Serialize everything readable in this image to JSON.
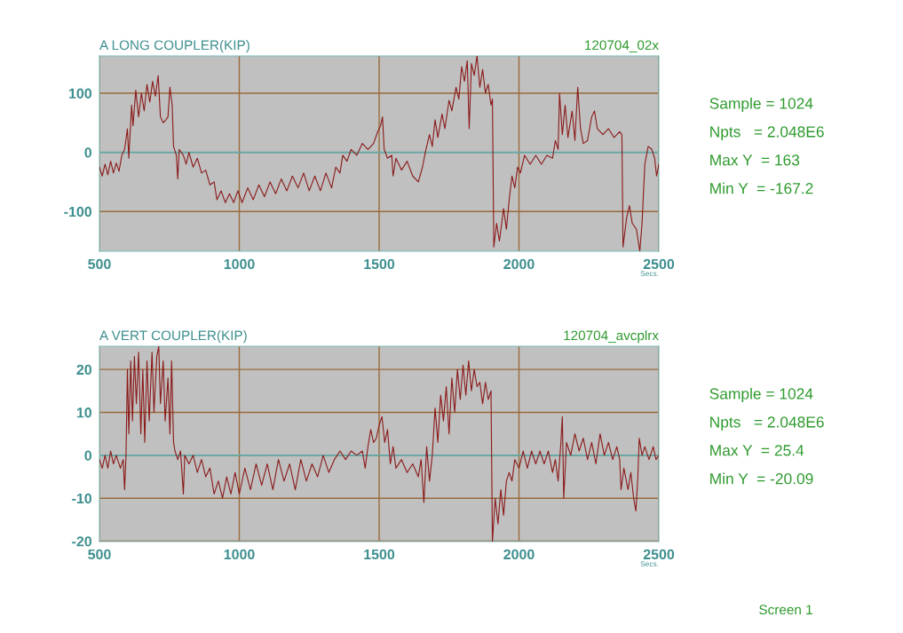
{
  "chart_data": [
    {
      "type": "line",
      "title": "A LONG COUPLER(KIP)",
      "subtitle": "120704_02x",
      "xlabel": "Secs.",
      "xlim": [
        500,
        2500
      ],
      "xticks": [
        500,
        1000,
        1500,
        2000,
        2500
      ],
      "ylim": [
        -167.2,
        163
      ],
      "yticks": [
        -100,
        0,
        100
      ],
      "grid": true,
      "ref_lines": [
        {
          "axis": "y",
          "value": 0,
          "color": "#62aaaa"
        }
      ],
      "annotations": [
        "Sample = 1024",
        "Npts   = 2.048E6",
        "Max Y  = 163",
        "Min Y  = -167.2"
      ],
      "series": [
        {
          "color": "#8b1a1a",
          "x": [
            500,
            510,
            520,
            530,
            540,
            550,
            560,
            570,
            580,
            590,
            600,
            605,
            615,
            620,
            630,
            640,
            650,
            660,
            670,
            680,
            690,
            700,
            710,
            718,
            728,
            738,
            745,
            752,
            760,
            765,
            775,
            780,
            785,
            800,
            810,
            820,
            835,
            850,
            865,
            880,
            895,
            910,
            920,
            935,
            950,
            965,
            980,
            995,
            1010,
            1030,
            1050,
            1070,
            1090,
            1110,
            1130,
            1150,
            1170,
            1190,
            1210,
            1230,
            1250,
            1270,
            1290,
            1310,
            1330,
            1345,
            1360,
            1370,
            1385,
            1400,
            1420,
            1440,
            1460,
            1480,
            1495,
            1505,
            1512,
            1518,
            1530,
            1545,
            1550,
            1560,
            1580,
            1600,
            1620,
            1640,
            1655,
            1665,
            1680,
            1690,
            1700,
            1710,
            1725,
            1735,
            1750,
            1760,
            1775,
            1785,
            1795,
            1805,
            1815,
            1822,
            1830,
            1840,
            1850,
            1860,
            1870,
            1880,
            1890,
            1900,
            1905,
            1910,
            1920,
            1930,
            1945,
            1955,
            1965,
            1975,
            1985,
            1995,
            2005,
            2020,
            2040,
            2060,
            2080,
            2100,
            2120,
            2130,
            2140,
            2145,
            2155,
            2165,
            2175,
            2190,
            2200,
            2210,
            2220,
            2230,
            2245,
            2260,
            2270,
            2280,
            2300,
            2320,
            2340,
            2360,
            2368,
            2372,
            2385,
            2395,
            2405,
            2420,
            2432,
            2440,
            2450,
            2462,
            2475,
            2485,
            2492,
            2500
          ],
          "values": [
            -25,
            -40,
            -20,
            -38,
            -15,
            -35,
            -18,
            -32,
            -5,
            5,
            40,
            -10,
            80,
            45,
            105,
            60,
            100,
            70,
            115,
            85,
            120,
            95,
            130,
            60,
            50,
            55,
            60,
            110,
            80,
            10,
            -5,
            -45,
            5,
            -5,
            -20,
            0,
            -25,
            -10,
            -35,
            -30,
            -55,
            -50,
            -80,
            -65,
            -85,
            -70,
            -85,
            -65,
            -85,
            -60,
            -80,
            -55,
            -75,
            -50,
            -70,
            -45,
            -65,
            -40,
            -60,
            -35,
            -65,
            -40,
            -65,
            -35,
            -60,
            -25,
            -35,
            -5,
            -15,
            5,
            -5,
            15,
            5,
            15,
            35,
            45,
            60,
            5,
            -10,
            -5,
            -40,
            -10,
            -30,
            -15,
            -40,
            -50,
            -25,
            0,
            30,
            10,
            55,
            25,
            65,
            40,
            88,
            70,
            110,
            90,
            145,
            120,
            155,
            40,
            150,
            130,
            163,
            110,
            140,
            100,
            115,
            80,
            90,
            -160,
            -120,
            -150,
            -95,
            -130,
            -80,
            -40,
            -60,
            -25,
            -35,
            -5,
            -20,
            -5,
            -20,
            -5,
            -10,
            20,
            5,
            100,
            30,
            80,
            25,
            70,
            20,
            110,
            40,
            15,
            20,
            60,
            70,
            40,
            30,
            40,
            25,
            35,
            30,
            -160,
            -110,
            -90,
            -120,
            -130,
            -167.2,
            -120,
            -20,
            10,
            5,
            -10,
            -40,
            -20
          ]
        }
      ]
    },
    {
      "type": "line",
      "title": "A VERT COUPLER(KIP)",
      "subtitle": "120704_avcplrx",
      "xlabel": "Secs.",
      "xlim": [
        500,
        2500
      ],
      "xticks": [
        500,
        1000,
        1500,
        2000,
        2500
      ],
      "ylim": [
        -20.09,
        25.4
      ],
      "yticks": [
        -20,
        -10,
        0,
        10,
        20
      ],
      "grid": true,
      "ref_lines": [
        {
          "axis": "y",
          "value": 0,
          "color": "#62aaaa"
        }
      ],
      "annotations": [
        "Sample = 1024",
        "Npts   = 2.048E6",
        "Max Y  = 25.4",
        "Min Y  = -20.09",
        "Screen 1"
      ],
      "series": [
        {
          "color": "#8b1a1a",
          "x": [
            500,
            510,
            520,
            530,
            540,
            550,
            560,
            575,
            585,
            590,
            595,
            600,
            605,
            612,
            618,
            625,
            632,
            640,
            648,
            655,
            662,
            670,
            678,
            688,
            695,
            705,
            712,
            718,
            728,
            735,
            745,
            752,
            758,
            765,
            770,
            780,
            790,
            800,
            805,
            820,
            835,
            850,
            865,
            880,
            895,
            910,
            925,
            940,
            955,
            970,
            985,
            1000,
            1020,
            1040,
            1060,
            1080,
            1100,
            1120,
            1140,
            1160,
            1180,
            1200,
            1220,
            1240,
            1260,
            1280,
            1300,
            1320,
            1340,
            1360,
            1380,
            1400,
            1420,
            1440,
            1450,
            1460,
            1470,
            1480,
            1490,
            1500,
            1510,
            1520,
            1530,
            1540,
            1550,
            1560,
            1580,
            1600,
            1620,
            1640,
            1650,
            1660,
            1670,
            1680,
            1690,
            1700,
            1710,
            1720,
            1730,
            1740,
            1750,
            1760,
            1770,
            1780,
            1790,
            1800,
            1810,
            1820,
            1830,
            1840,
            1850,
            1860,
            1870,
            1880,
            1890,
            1900,
            1905,
            1915,
            1925,
            1935,
            1945,
            1955,
            1965,
            1975,
            1985,
            2000,
            2015,
            2030,
            2045,
            2060,
            2075,
            2090,
            2105,
            2120,
            2130,
            2140,
            2150,
            2155,
            2160,
            2170,
            2185,
            2200,
            2215,
            2230,
            2245,
            2260,
            2275,
            2290,
            2305,
            2320,
            2335,
            2350,
            2360,
            2365,
            2375,
            2390,
            2400,
            2410,
            2418,
            2425,
            2430,
            2440,
            2450,
            2465,
            2480,
            2490,
            2500
          ],
          "values": [
            -1,
            -3,
            0,
            -3,
            1,
            -2,
            0,
            -3,
            -1,
            -8,
            0,
            20,
            5,
            22,
            8,
            23,
            12,
            24,
            5,
            20,
            3,
            22,
            8,
            24,
            10,
            23,
            25.4,
            12,
            22,
            8,
            18,
            5,
            22,
            3,
            1,
            -1,
            1,
            -9,
            0,
            -2,
            0,
            -4,
            -1,
            -5,
            -3,
            -9,
            -6,
            -10,
            -5,
            -9,
            -4,
            -9,
            -3,
            -8,
            -2,
            -7,
            -2,
            -8,
            -1,
            -6,
            -2,
            -8,
            -1,
            -6,
            -2,
            -5,
            0,
            -4,
            -1,
            1,
            -1,
            1,
            0,
            1,
            -3,
            2,
            6,
            3,
            4,
            7,
            9,
            3,
            6,
            -2,
            2,
            -3,
            -1,
            -4,
            -2,
            -5,
            -1,
            -11,
            2,
            -6,
            0,
            11,
            3,
            14,
            8,
            16,
            5,
            18,
            10,
            20,
            13,
            21,
            14,
            22,
            15,
            20,
            16,
            17,
            12,
            17,
            13,
            15,
            -20.09,
            -10,
            -16,
            -8,
            -14,
            -6,
            -4,
            -6,
            -1,
            -3,
            1,
            -3,
            1,
            -2,
            1,
            -2,
            1,
            -4,
            -1,
            -6,
            3,
            9,
            -10,
            3,
            0,
            5,
            1,
            4,
            -1,
            3,
            -2,
            5,
            0,
            3,
            -1,
            2,
            -1,
            -8,
            -3,
            -8,
            -4,
            -10,
            -13,
            -5,
            4,
            0,
            2,
            -1,
            2,
            -1,
            0
          ]
        }
      ]
    }
  ]
}
